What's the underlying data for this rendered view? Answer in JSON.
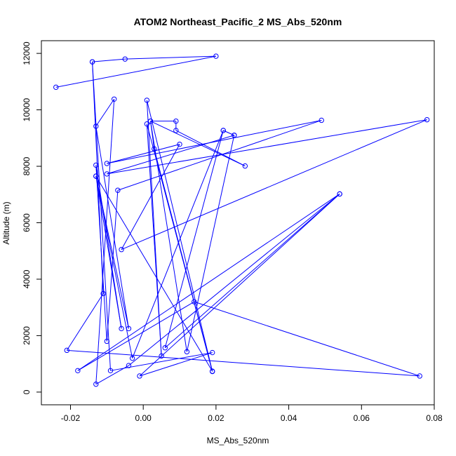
{
  "chart_data": {
    "type": "line",
    "title": "ATOM2 Northeast_Pacific_2 MS_Abs_520nm",
    "xlabel": "MS_Abs_520nm",
    "ylabel": "Altitude (m)",
    "xlim": [
      -0.028,
      0.08
    ],
    "ylim": [
      -450,
      12450
    ],
    "x_ticks": [
      -0.02,
      0.0,
      0.02,
      0.04,
      0.06,
      0.08
    ],
    "x_tick_labels": [
      "-0.02",
      "0.00",
      "0.02",
      "0.04",
      "0.06",
      "0.08"
    ],
    "y_ticks": [
      0,
      2000,
      4000,
      6000,
      8000,
      10000,
      12000
    ],
    "y_tick_labels": [
      "0",
      "2000",
      "4000",
      "6000",
      "8000",
      "10000",
      "12000"
    ],
    "grid": false,
    "legend": "none",
    "line_color": "#0000ff",
    "marker": "open-circle",
    "series": [
      {
        "points": [
          [
            -0.024,
            10800
          ],
          [
            0.02,
            11900
          ],
          [
            -0.005,
            11800
          ],
          [
            -0.014,
            11700
          ],
          [
            -0.009,
            760
          ],
          [
            0.019,
            1400
          ],
          [
            -0.001,
            570
          ],
          [
            0.054,
            7020
          ],
          [
            -0.004,
            940
          ],
          [
            -0.013,
            280
          ],
          [
            -0.008,
            10380
          ],
          [
            -0.013,
            9420
          ],
          [
            -0.004,
            2250
          ],
          [
            -0.013,
            7650
          ],
          [
            -0.003,
            1200
          ],
          [
            0.022,
            9270
          ],
          [
            0.025,
            9100
          ],
          [
            -0.01,
            7730
          ],
          [
            0.078,
            9650
          ],
          [
            -0.006,
            5050
          ],
          [
            0.01,
            8780
          ],
          [
            -0.01,
            8100
          ],
          [
            0.049,
            9630
          ],
          [
            -0.007,
            7150
          ],
          [
            -0.01,
            1800
          ],
          [
            -0.013,
            8040
          ],
          [
            -0.006,
            2250
          ],
          [
            -0.013,
            7650
          ],
          [
            0.019,
            740
          ],
          [
            0.001,
            10340
          ],
          [
            0.005,
            1280
          ],
          [
            0.001,
            9500
          ],
          [
            0.019,
            730
          ],
          [
            0.003,
            8620
          ],
          [
            0.002,
            9600
          ],
          [
            0.009,
            9600
          ],
          [
            0.009,
            9270
          ],
          [
            0.028,
            8010
          ],
          [
            0.002,
            9600
          ],
          [
            0.012,
            1430
          ],
          [
            0.025,
            9100
          ],
          [
            0.022,
            9270
          ],
          [
            0.006,
            1570
          ],
          [
            0.054,
            7020
          ],
          [
            -0.018,
            760
          ],
          [
            0.014,
            3200
          ],
          [
            0.076,
            570
          ],
          [
            -0.021,
            1480
          ],
          [
            -0.011,
            3490
          ],
          [
            -0.014,
            11700
          ]
        ]
      }
    ]
  }
}
